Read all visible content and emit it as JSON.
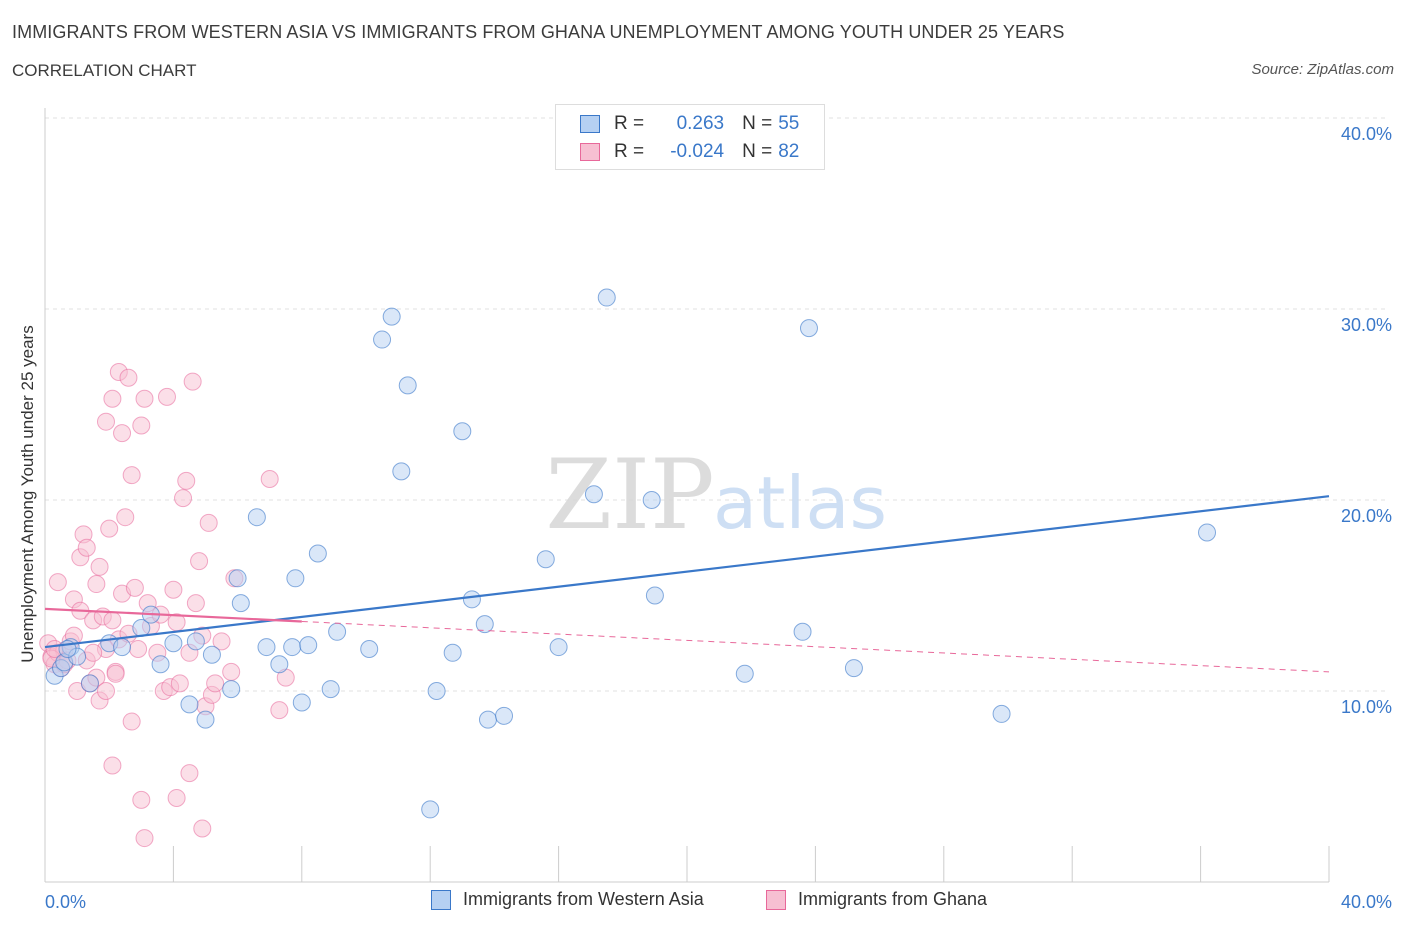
{
  "header": {
    "title": "IMMIGRANTS FROM WESTERN ASIA VS IMMIGRANTS FROM GHANA UNEMPLOYMENT AMONG YOUTH UNDER 25 YEARS",
    "subtitle": "CORRELATION CHART",
    "source": "Source: ZipAtlas.com"
  },
  "legend": {
    "r_label": "R =",
    "n_label": "N =",
    "series1": {
      "r": "0.263",
      "n": "55"
    },
    "series2": {
      "r": "-0.024",
      "n": "82"
    }
  },
  "watermark": {
    "zip": "ZIP",
    "atlas": "atlas"
  },
  "colors": {
    "blue": "#3a78c9",
    "blue_fill": "#b5d0f2",
    "pink": "#e8689a",
    "pink_fill": "#f7bfd2",
    "grid": "#e0e0e0"
  },
  "chart_data": {
    "type": "scatter",
    "title": "IMMIGRANTS FROM WESTERN ASIA VS IMMIGRANTS FROM GHANA UNEMPLOYMENT AMONG YOUTH UNDER 25 YEARS",
    "xlabel": "",
    "ylabel": "Unemployment Among Youth under 25 years",
    "xlim": [
      0,
      40
    ],
    "ylim": [
      0,
      40
    ],
    "x_tick_labels": [
      "0.0%",
      "40.0%"
    ],
    "y_tick_labels": [
      "10.0%",
      "20.0%",
      "30.0%",
      "40.0%"
    ],
    "y_ticks": [
      10,
      20,
      30,
      40
    ],
    "grid": true,
    "series": [
      {
        "name": "Immigrants from Western Asia",
        "color": "#3a78c9",
        "r": 0.263,
        "n": 55,
        "trend": {
          "x0": 0,
          "y0": 12.3,
          "x1": 40,
          "y1": 20.2,
          "dashed_from": null
        },
        "points": [
          [
            0.3,
            10.8
          ],
          [
            0.5,
            11.2
          ],
          [
            0.6,
            11.5
          ],
          [
            0.8,
            12.3
          ],
          [
            1.0,
            11.8
          ],
          [
            1.4,
            10.4
          ],
          [
            2.0,
            12.5
          ],
          [
            2.4,
            12.3
          ],
          [
            3.0,
            13.3
          ],
          [
            3.3,
            14.0
          ],
          [
            3.6,
            11.4
          ],
          [
            4.0,
            12.5
          ],
          [
            4.5,
            9.3
          ],
          [
            4.7,
            12.6
          ],
          [
            5.0,
            8.5
          ],
          [
            5.2,
            11.9
          ],
          [
            5.8,
            10.1
          ],
          [
            6.0,
            15.9
          ],
          [
            6.1,
            14.6
          ],
          [
            6.6,
            19.1
          ],
          [
            6.9,
            12.3
          ],
          [
            7.3,
            11.4
          ],
          [
            7.7,
            12.3
          ],
          [
            7.8,
            15.9
          ],
          [
            8.0,
            9.4
          ],
          [
            8.2,
            12.4
          ],
          [
            8.5,
            17.2
          ],
          [
            8.9,
            10.1
          ],
          [
            9.1,
            13.1
          ],
          [
            10.1,
            12.2
          ],
          [
            10.5,
            28.4
          ],
          [
            10.8,
            29.6
          ],
          [
            11.1,
            21.5
          ],
          [
            11.3,
            26.0
          ],
          [
            12.0,
            3.8
          ],
          [
            12.2,
            10.0
          ],
          [
            12.7,
            12.0
          ],
          [
            13.0,
            23.6
          ],
          [
            13.3,
            14.8
          ],
          [
            13.7,
            13.5
          ],
          [
            13.8,
            8.5
          ],
          [
            14.3,
            8.7
          ],
          [
            15.6,
            16.9
          ],
          [
            16.0,
            12.3
          ],
          [
            17.1,
            20.3
          ],
          [
            17.5,
            30.6
          ],
          [
            18.9,
            20.0
          ],
          [
            19.0,
            15.0
          ],
          [
            21.8,
            10.9
          ],
          [
            23.6,
            13.1
          ],
          [
            23.8,
            29.0
          ],
          [
            25.2,
            11.2
          ],
          [
            29.8,
            8.8
          ],
          [
            36.2,
            18.3
          ],
          [
            0.7,
            12.2
          ]
        ]
      },
      {
        "name": "Immigrants from Ghana",
        "color": "#e8689a",
        "r": -0.024,
        "n": 82,
        "trend": {
          "x0": 0,
          "y0": 14.3,
          "x1": 40,
          "y1": 11.0,
          "dashed_from": 8.0
        },
        "points": [
          [
            0.1,
            12.5
          ],
          [
            0.2,
            11.8
          ],
          [
            0.3,
            11.4
          ],
          [
            0.4,
            12.0
          ],
          [
            0.5,
            11.2
          ],
          [
            0.4,
            15.7
          ],
          [
            0.6,
            12.1
          ],
          [
            0.7,
            11.6
          ],
          [
            0.8,
            12.6
          ],
          [
            0.9,
            14.8
          ],
          [
            1.0,
            10.0
          ],
          [
            0.9,
            12.9
          ],
          [
            1.1,
            14.2
          ],
          [
            1.1,
            17.0
          ],
          [
            1.2,
            18.2
          ],
          [
            1.3,
            17.5
          ],
          [
            1.3,
            11.6
          ],
          [
            1.4,
            10.4
          ],
          [
            1.5,
            13.7
          ],
          [
            1.6,
            10.7
          ],
          [
            1.6,
            15.6
          ],
          [
            1.7,
            9.5
          ],
          [
            1.7,
            16.5
          ],
          [
            1.8,
            13.9
          ],
          [
            1.9,
            10.0
          ],
          [
            1.9,
            12.2
          ],
          [
            1.9,
            24.1
          ],
          [
            2.0,
            18.5
          ],
          [
            2.1,
            13.7
          ],
          [
            2.1,
            25.3
          ],
          [
            2.2,
            11.0
          ],
          [
            2.3,
            12.7
          ],
          [
            2.3,
            26.7
          ],
          [
            2.4,
            23.5
          ],
          [
            2.5,
            19.1
          ],
          [
            2.4,
            15.1
          ],
          [
            2.6,
            13.0
          ],
          [
            2.6,
            26.4
          ],
          [
            2.7,
            21.3
          ],
          [
            2.7,
            8.4
          ],
          [
            2.8,
            15.4
          ],
          [
            2.9,
            12.2
          ],
          [
            3.0,
            23.9
          ],
          [
            3.1,
            25.3
          ],
          [
            3.2,
            14.6
          ],
          [
            3.3,
            13.4
          ],
          [
            3.5,
            12.0
          ],
          [
            3.6,
            14.0
          ],
          [
            3.7,
            10.0
          ],
          [
            3.8,
            25.4
          ],
          [
            3.9,
            10.2
          ],
          [
            4.0,
            15.3
          ],
          [
            4.1,
            13.6
          ],
          [
            4.2,
            10.4
          ],
          [
            4.3,
            20.1
          ],
          [
            4.4,
            21.0
          ],
          [
            4.5,
            12.0
          ],
          [
            4.6,
            26.2
          ],
          [
            4.7,
            14.6
          ],
          [
            4.8,
            16.8
          ],
          [
            4.9,
            12.9
          ],
          [
            5.0,
            9.2
          ],
          [
            5.1,
            18.8
          ],
          [
            5.2,
            9.8
          ],
          [
            5.3,
            10.4
          ],
          [
            5.5,
            12.6
          ],
          [
            5.8,
            11.0
          ],
          [
            5.9,
            15.9
          ],
          [
            7.0,
            21.1
          ],
          [
            7.3,
            9.0
          ],
          [
            7.5,
            10.7
          ],
          [
            2.1,
            6.1
          ],
          [
            3.0,
            4.3
          ],
          [
            3.1,
            2.3
          ],
          [
            4.1,
            4.4
          ],
          [
            4.5,
            5.7
          ],
          [
            4.9,
            2.8
          ],
          [
            0.6,
            11.4
          ],
          [
            0.2,
            11.7
          ],
          [
            0.3,
            12.2
          ],
          [
            1.5,
            12.0
          ],
          [
            2.2,
            10.9
          ]
        ]
      }
    ]
  },
  "bottom_legend": {
    "series1": "Immigrants from Western Asia",
    "series2": "Immigrants from Ghana"
  }
}
